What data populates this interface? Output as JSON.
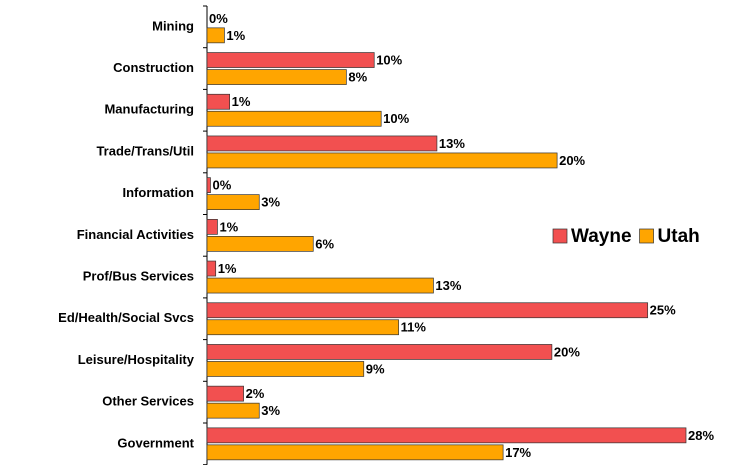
{
  "chart_data": {
    "type": "bar",
    "orientation": "horizontal",
    "categories": [
      "Mining",
      "Construction",
      "Manufacturing",
      "Trade/Trans/Util",
      "Information",
      "Financial Activities",
      "Prof/Bus Services",
      "Ed/Health/Social Svcs",
      "Leisure/Hospitality",
      "Other Services",
      "Government"
    ],
    "series": [
      {
        "name": "Wayne",
        "color": "#f25050",
        "values": [
          0,
          9.6,
          1.3,
          13.2,
          0.2,
          0.6,
          0.5,
          25.3,
          19.8,
          2.1,
          27.5
        ],
        "value_labels": [
          "0%",
          "10%",
          "1%",
          "13%",
          "0%",
          "1%",
          "1%",
          "25%",
          "20%",
          "2%",
          "28%"
        ]
      },
      {
        "name": "Utah",
        "color": "#ffa500",
        "values": [
          1.0,
          8.0,
          10.0,
          20.1,
          3.0,
          6.1,
          13.0,
          11.0,
          9.0,
          3.0,
          17.0
        ],
        "value_labels": [
          "1%",
          "8%",
          "10%",
          "20%",
          "3%",
          "6%",
          "13%",
          "11%",
          "9%",
          "3%",
          "17%"
        ]
      }
    ],
    "legend": "right"
  }
}
